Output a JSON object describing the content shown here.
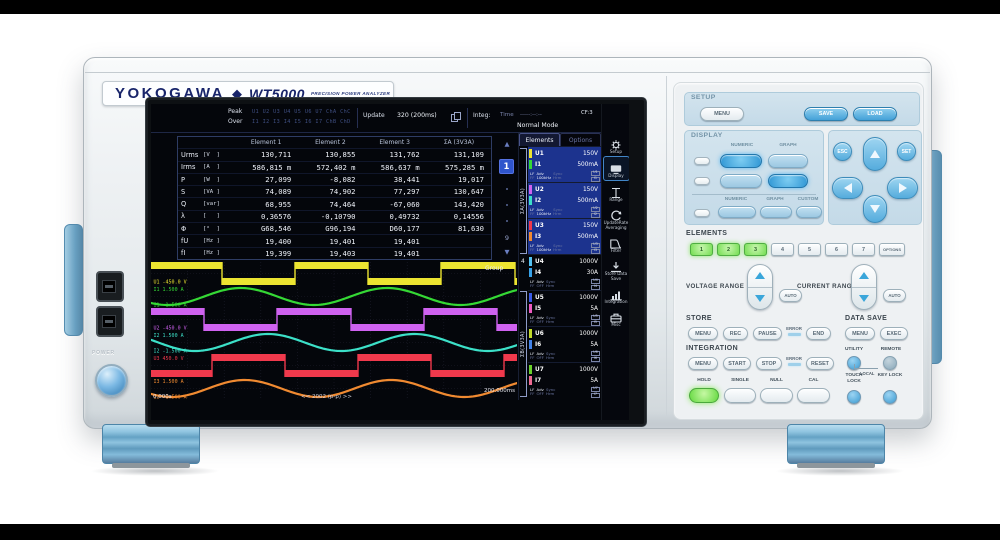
{
  "device": {
    "brand": "YOKOGAWA",
    "diamond": "◆",
    "model": "WT5000",
    "tagline": "PRECISION POWER ANALYZER",
    "power_label": "POWER"
  },
  "screen": {
    "status": {
      "peak_label": "Peak",
      "peak_items": "U1 U2 U3 U4 U5 U6 U7 ChA ChC",
      "over_label": "Over",
      "over_items": "I1 I2 I3 I4 I5 I6 I7 ChB ChD",
      "update_label": "Update",
      "update_value": "320 (200ms)",
      "integ_label": "Integ:",
      "time_label": "Time",
      "time_value": "-----:--:--",
      "mode": "Normal Mode",
      "crest_factor": "CF:3",
      "help": "?"
    },
    "tabs": {
      "elements": "Elements",
      "options": "Options"
    },
    "table": {
      "headers": [
        "Element 1",
        "Element 2",
        "Element 3",
        "ΣA (3V3A)"
      ],
      "rows": [
        {
          "name": "Urms",
          "unit": "[V  ]",
          "values": [
            "130,711",
            "130,855",
            "131,762",
            "131,109"
          ]
        },
        {
          "name": "Irms",
          "unit": "[A  ]",
          "values": [
            "586,815 m",
            "572,402 m",
            "586,637 m",
            "575,285 m"
          ]
        },
        {
          "name": "P",
          "unit": "[W  ]",
          "values": [
            "27,099",
            "-8,082",
            "38,441",
            "19,017"
          ]
        },
        {
          "name": "S",
          "unit": "[VA ]",
          "values": [
            "74,089",
            "74,902",
            "77,297",
            "130,647"
          ]
        },
        {
          "name": "Q",
          "unit": "[var]",
          "values": [
            "68,955",
            "74,464",
            "-67,060",
            "143,420"
          ]
        },
        {
          "name": "λ",
          "unit": "[   ]",
          "values": [
            "0,36576",
            "-0,10790",
            "0,49732",
            "0,14556"
          ]
        },
        {
          "name": "Φ",
          "unit": "[°  ]",
          "values": [
            "G68,546",
            "G96,194",
            "D60,177",
            "81,630"
          ]
        },
        {
          "name": "fU",
          "unit": "[Hz ]",
          "values": [
            "19,400",
            "19,401",
            "19,401",
            ""
          ]
        },
        {
          "name": "fI",
          "unit": "[Hz ]",
          "values": [
            "19,399",
            "19,403",
            "19,401",
            ""
          ]
        }
      ]
    },
    "pager": {
      "up": "▲",
      "current": "1",
      "last": "9",
      "down": "▼"
    },
    "elements_panel": {
      "group_a": "ΣA(3V3A)",
      "group_b": "ΣB(3V3A)",
      "element4_index": "4",
      "lf": "LF",
      "ff": "FF",
      "adv": "Adv",
      "sync": "Sync",
      "hrm": "Hrm",
      "items": [
        {
          "u": "U1",
          "u_range": "150V",
          "u_color": "#ece431",
          "i": "I1",
          "i_range": "500mA",
          "i_color": "#35d835",
          "freq": "100kHz",
          "selected": true
        },
        {
          "u": "U2",
          "u_range": "150V",
          "u_color": "#cf62f0",
          "i": "I2",
          "i_range": "500mA",
          "i_color": "#3ce0c8",
          "freq": "100kHz",
          "selected": true
        },
        {
          "u": "U3",
          "u_range": "150V",
          "u_color": "#f0394c",
          "i": "I3",
          "i_range": "500mA",
          "i_color": "#f08a31",
          "freq": "100kHz",
          "selected": true
        },
        {
          "u": "U4",
          "u_range": "1000V",
          "u_color": "#55c2f2",
          "i": "I4",
          "i_range": "30A",
          "i_color": "#38a2e8",
          "freq": "OFF",
          "selected": false
        },
        {
          "u": "U5",
          "u_range": "1000V",
          "u_color": "#3a5ae8",
          "i": "I5",
          "i_range": "5A",
          "i_color": "#f05ac2",
          "freq": "OFF",
          "selected": false
        },
        {
          "u": "U6",
          "u_range": "1000V",
          "u_color": "#c2da2a",
          "i": "I6",
          "i_range": "5A",
          "i_color": "#4282e8",
          "freq": "OFF",
          "selected": false
        },
        {
          "u": "U7",
          "u_range": "1000V",
          "u_color": "#6ad22a",
          "i": "I7",
          "i_range": "5A",
          "i_color": "#f06a92",
          "freq": "OFF",
          "selected": false
        }
      ]
    },
    "sidebar": {
      "items": [
        {
          "label": "Setup",
          "icon": "gear",
          "active": false
        },
        {
          "label": "Display",
          "icon": "display",
          "active": true
        },
        {
          "label": "Range",
          "icon": "range",
          "active": false
        },
        {
          "label": "UpdateRate Averaging",
          "icon": "update-rate",
          "active": false
        },
        {
          "label": "Filter",
          "icon": "filter",
          "active": false
        },
        {
          "label": "Store Data Save",
          "icon": "store",
          "active": false
        },
        {
          "label": "Integration",
          "icon": "integration",
          "active": false
        },
        {
          "label": "Misc",
          "icon": "misc",
          "active": false
        }
      ]
    }
  },
  "chart_data": {
    "type": "line",
    "title": "Waveform display of voltage (square) and current (sine) for elements 1-3",
    "x_start_label": "0.000s",
    "x_end_label": "200.000ms",
    "center_label": "<< 2002 (p-p) >>",
    "group_label": "Group",
    "time_span_ms": 200,
    "cycles_shown": 2.5,
    "grid": true,
    "channels": [
      {
        "name": "U1",
        "kind": "square",
        "color": "#ece431",
        "max_label": "450.0 V",
        "min_label": "-450.0 V",
        "phase": 0.02
      },
      {
        "name": "I1",
        "kind": "sine",
        "color": "#35d835",
        "max_label": "1.500 A",
        "min_label": "-1.500 A",
        "phase": 0.637
      },
      {
        "name": "U2",
        "kind": "square",
        "color": "#cf62f0",
        "max_label": "450.0 V",
        "min_label": "-450.0 V",
        "phase": 0.14
      },
      {
        "name": "I2",
        "kind": "sine",
        "color": "#3ce0c8",
        "max_label": "1.500 A",
        "min_label": "-1.500 A",
        "phase": 0.45
      },
      {
        "name": "U3",
        "kind": "square",
        "color": "#f0394c",
        "max_label": "450.0 V",
        "min_label": "-450.0 V",
        "phase": 0.59
      },
      {
        "name": "I3",
        "kind": "sine",
        "color": "#f08a31",
        "max_label": "1.500 A",
        "min_label": "-1.500 A",
        "phase": 0.61
      }
    ]
  },
  "panel": {
    "setup": {
      "title": "SETUP",
      "menu": "MENU",
      "save": "SAVE",
      "load": "LOAD"
    },
    "display": {
      "title": "DISPLAY",
      "numeric": "NUMERIC",
      "graph": "GRAPH",
      "numeric2": "NUMERIC",
      "graph2": "GRAPH",
      "custom": "CUSTOM"
    },
    "nav": {
      "esc": "ESC",
      "set": "SET"
    },
    "elements": {
      "title": "ELEMENTS",
      "buttons": [
        "1",
        "2",
        "3",
        "4",
        "5",
        "6",
        "7"
      ],
      "active": [
        "1",
        "2",
        "3"
      ],
      "options": "OPTIONS"
    },
    "voltage_range": {
      "title": "VOLTAGE RANGE",
      "auto": "AUTO"
    },
    "current_range": {
      "title": "CURRENT RANGE",
      "auto": "AUTO"
    },
    "store": {
      "title": "STORE",
      "menu": "MENU",
      "rec": "REC",
      "pause": "PAUSE",
      "error": "ERROR",
      "end": "END"
    },
    "data_save": {
      "title": "DATA SAVE",
      "menu": "MENU",
      "exec": "EXEC"
    },
    "integration": {
      "title": "INTEGRATION",
      "menu": "MENU",
      "start": "START",
      "stop": "STOP",
      "error": "ERROR",
      "reset": "RESET"
    },
    "utility": {
      "utility": "UTILITY",
      "remote": "REMOTE",
      "local": "LOCAL"
    },
    "bottom": {
      "hold": "HOLD",
      "single": "SINGLE",
      "null_label": "NULL",
      "cal": "CAL",
      "touch_lock": "TOUCH LOCK",
      "key_lock": "KEY LOCK"
    }
  }
}
